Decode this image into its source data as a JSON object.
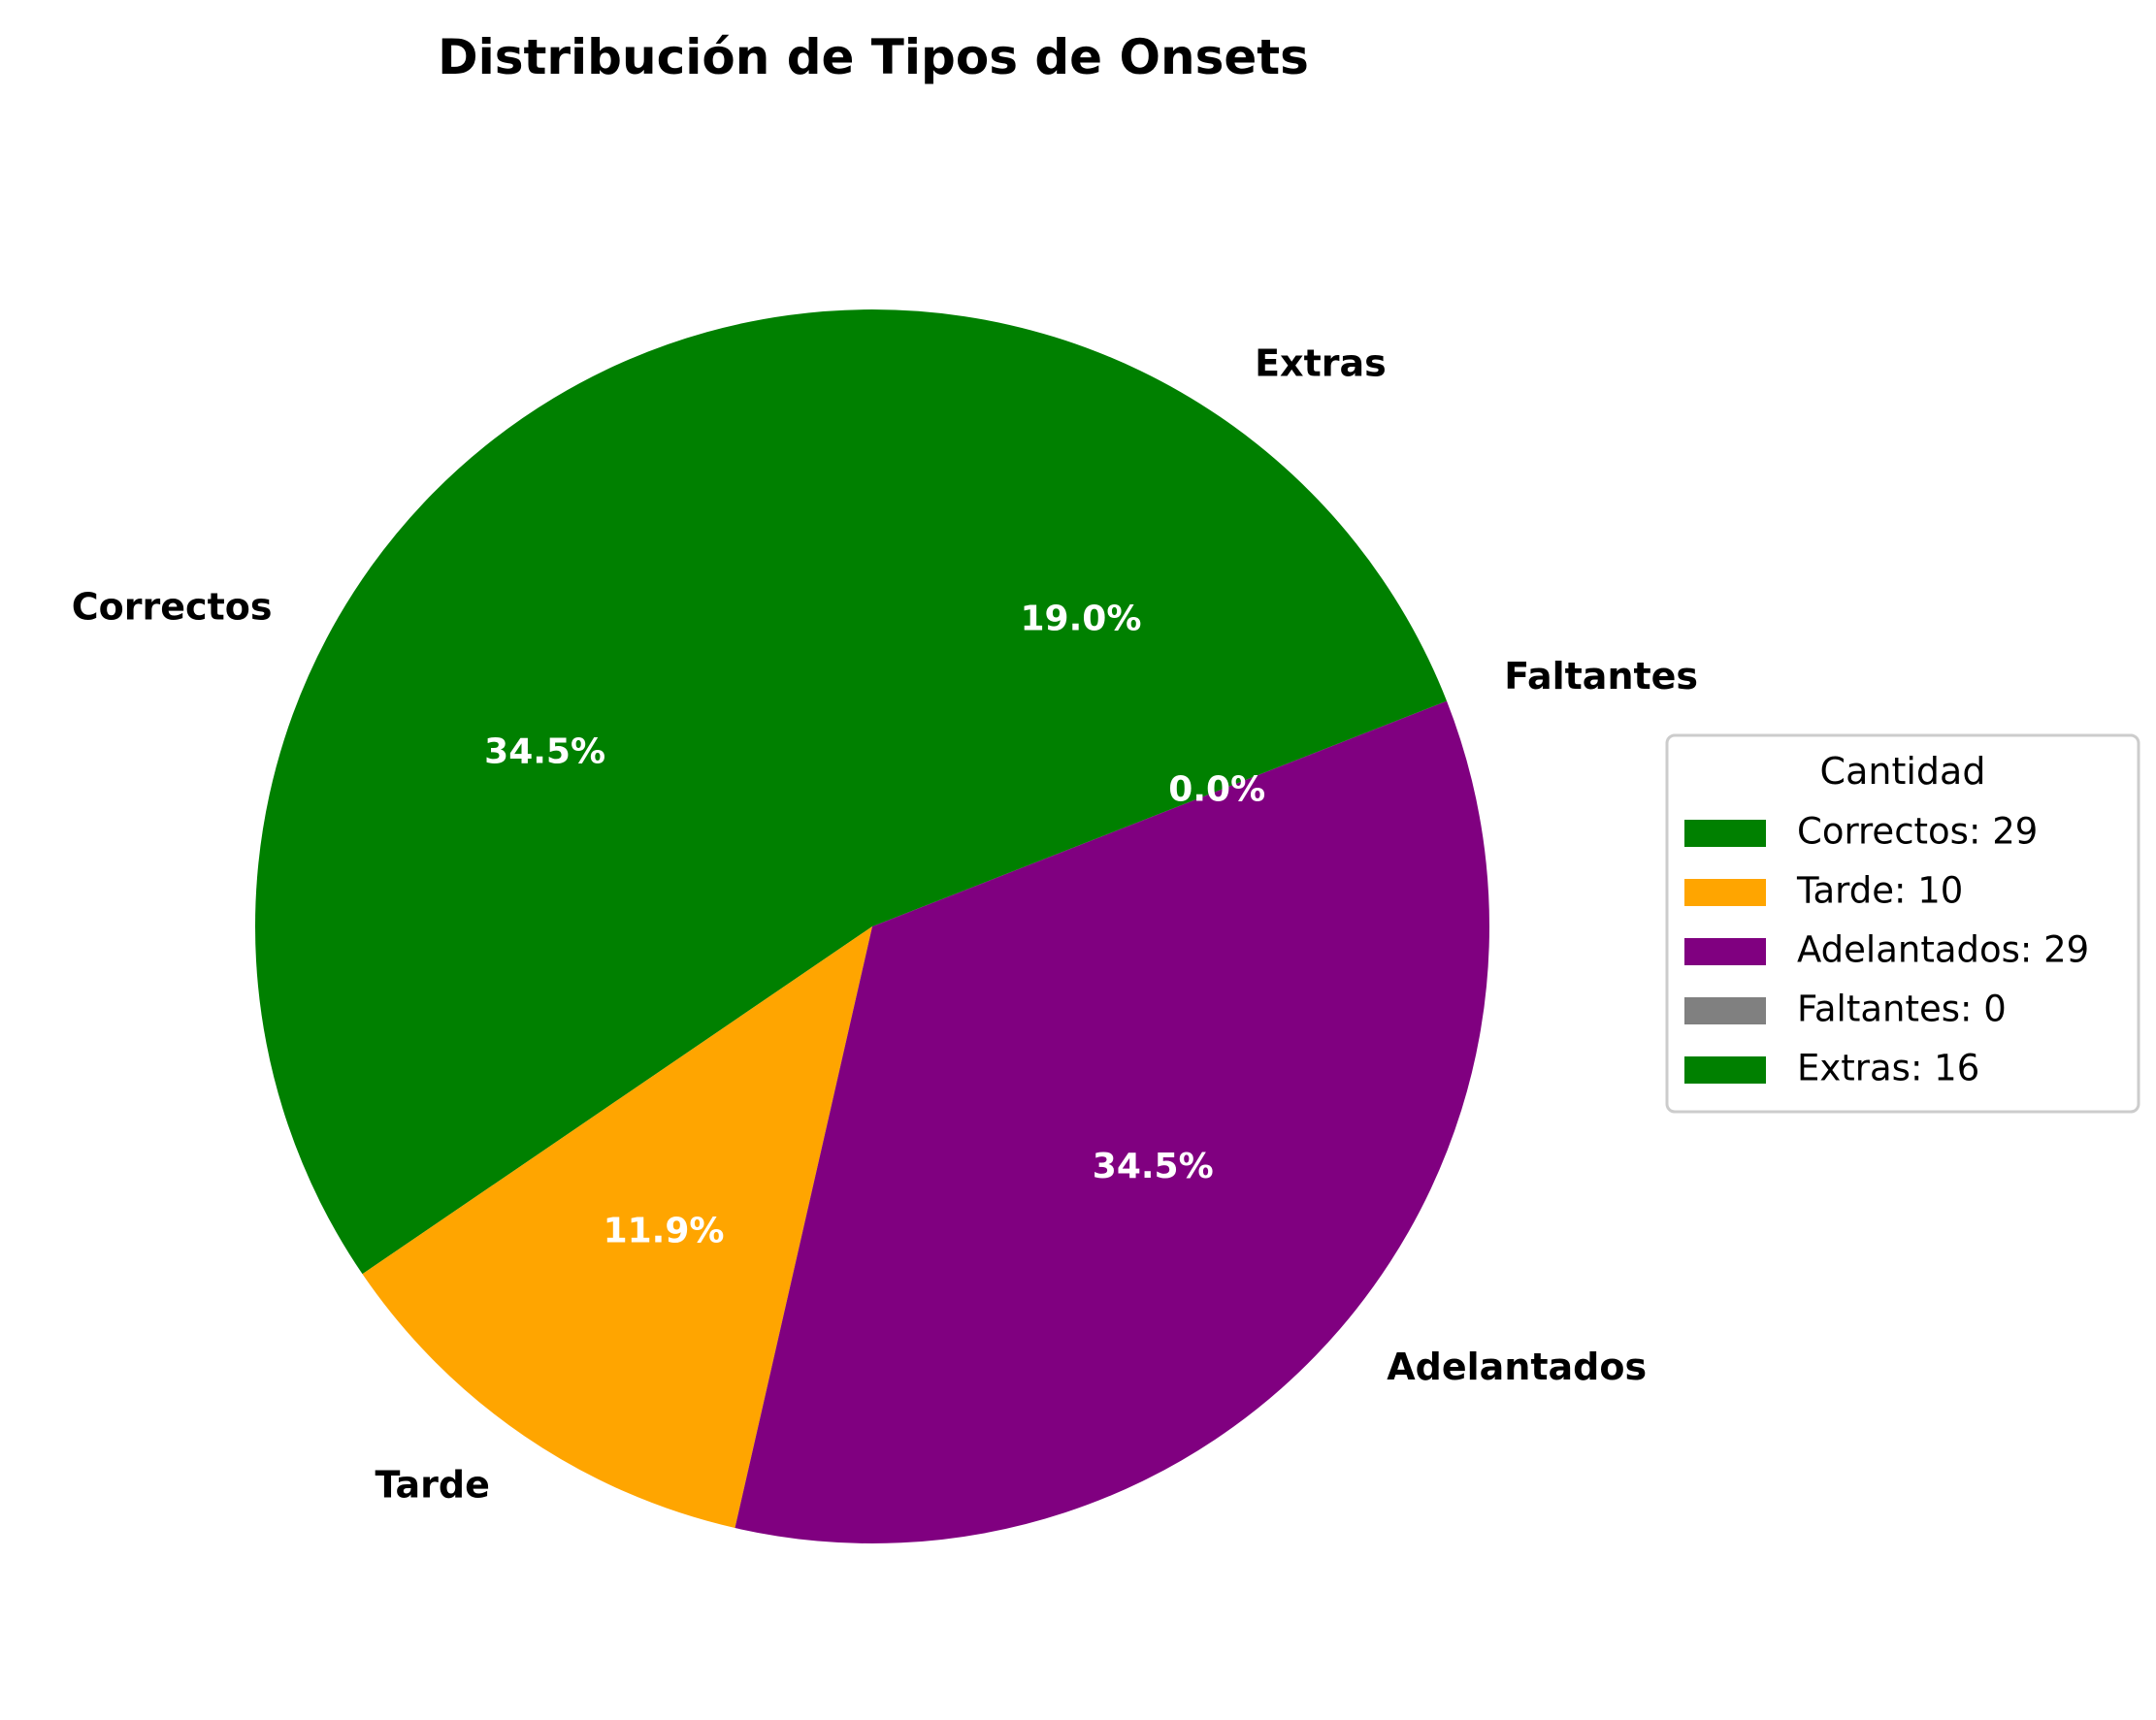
{
  "chart_data": {
    "type": "pie",
    "title": "Distribución de Tipos de Onsets",
    "slices": [
      {
        "label": "Correctos",
        "value": 29,
        "percent_label": "34.5%",
        "legend_label": "Correctos: 29",
        "color": "#008000"
      },
      {
        "label": "Tarde",
        "value": 10,
        "percent_label": "11.9%",
        "legend_label": "Tarde: 10",
        "color": "#FFA500"
      },
      {
        "label": "Adelantados",
        "value": 29,
        "percent_label": "34.5%",
        "legend_label": "Adelantados: 29",
        "color": "#800080"
      },
      {
        "label": "Faltantes",
        "value": 0,
        "percent_label": "0.0%",
        "legend_label": "Faltantes: 0",
        "color": "#808080"
      },
      {
        "label": "Extras",
        "value": 16,
        "percent_label": "19.0%",
        "legend_label": "Extras: 16",
        "color": "#008000"
      }
    ],
    "start_angle_deg": 90,
    "direction": "counterclockwise",
    "legend": {
      "title": "Cantidad",
      "placement": "right"
    }
  }
}
